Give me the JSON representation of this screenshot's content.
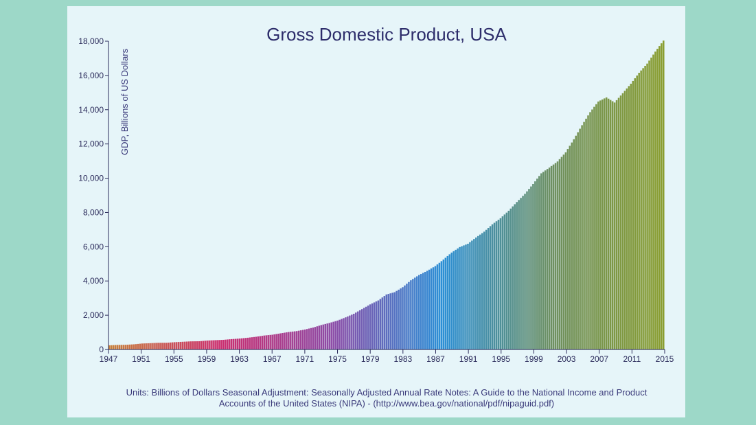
{
  "colors": {
    "page_background": "#9dd8c8",
    "panel_background": "#e6f5f9",
    "text": "#2d2d6b",
    "gradient_stops": [
      "#c8803a",
      "#cc2d6e",
      "#8e4ba6",
      "#2c8fd6",
      "#6f9060",
      "#8a9e30"
    ]
  },
  "chart_data": {
    "type": "bar",
    "title": "Gross Domestic Product, USA",
    "xlabel": "",
    "ylabel": "GDP, Billions of US Dollars",
    "notes": "Units: Billions of Dollars Seasonal Adjustment: Seasonally Adjusted Annual Rate Notes: A Guide to the National Income and Product Accounts of the United States (NIPA) - (http://www.bea.gov/national/pdf/nipaguid.pdf)",
    "frequency": "quarterly",
    "x_range": [
      "1947",
      "2015"
    ],
    "ylim": [
      0,
      18000
    ],
    "y_ticks": [
      0,
      2000,
      4000,
      6000,
      8000,
      10000,
      12000,
      14000,
      16000,
      18000
    ],
    "y_tick_labels": [
      "0",
      "2,000",
      "4,000",
      "6,000",
      "8,000",
      "10,000",
      "12,000",
      "14,000",
      "16,000",
      "18,000"
    ],
    "x_tick_labels": [
      "1947",
      "1951",
      "1955",
      "1959",
      "1963",
      "1967",
      "1971",
      "1975",
      "1979",
      "1983",
      "1987",
      "1991",
      "1995",
      "1999",
      "2003",
      "2007",
      "2011",
      "2015"
    ],
    "grid": false,
    "legend": "none",
    "annual_values": {
      "years": [
        1947,
        1948,
        1949,
        1950,
        1951,
        1952,
        1953,
        1954,
        1955,
        1956,
        1957,
        1958,
        1959,
        1960,
        1961,
        1962,
        1963,
        1964,
        1965,
        1966,
        1967,
        1968,
        1969,
        1970,
        1971,
        1972,
        1973,
        1974,
        1975,
        1976,
        1977,
        1978,
        1979,
        1980,
        1981,
        1982,
        1983,
        1984,
        1985,
        1986,
        1987,
        1988,
        1989,
        1990,
        1991,
        1992,
        1993,
        1994,
        1995,
        1996,
        1997,
        1998,
        1999,
        2000,
        2001,
        2002,
        2003,
        2004,
        2005,
        2006,
        2007,
        2008,
        2009,
        2010,
        2011,
        2012,
        2013,
        2014,
        2015
      ],
      "gdp": [
        244,
        266,
        273,
        301,
        348,
        368,
        390,
        391,
        425,
        449,
        474,
        481,
        522,
        543,
        563,
        605,
        638,
        686,
        743,
        815,
        861,
        942,
        1019,
        1073,
        1165,
        1280,
        1427,
        1548,
        1688,
        1877,
        2086,
        2357,
        2632,
        2863,
        3211,
        3345,
        3638,
        4041,
        4347,
        4590,
        4870,
        5253,
        5658,
        5980,
        6174,
        6539,
        6879,
        7309,
        7664,
        8100,
        8609,
        9089,
        9661,
        10285,
        10622,
        10978,
        11511,
        12275,
        13094,
        13856,
        14478,
        14719,
        14419,
        14964,
        15518,
        16155,
        16692,
        17393,
        18037
      ]
    }
  }
}
